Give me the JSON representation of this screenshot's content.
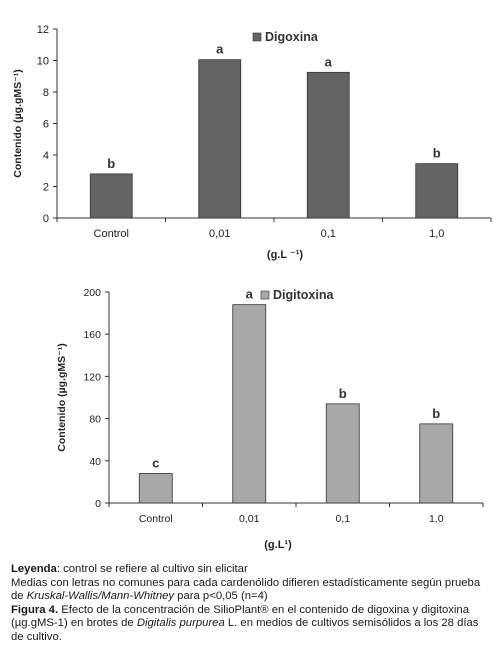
{
  "chart_data": [
    {
      "type": "bar",
      "categories": [
        "Control",
        "0,01",
        "0,1",
        "1,0"
      ],
      "series": [
        {
          "name": "Digoxina",
          "values": [
            2.8,
            10.05,
            9.25,
            3.45
          ]
        }
      ],
      "letters": [
        "b",
        "a",
        "a",
        "b"
      ],
      "ylabel": "Contenido (µg.gMS⁻¹)",
      "xlabel": "(g.L ⁻¹)",
      "ylim": [
        0,
        12
      ],
      "yticks": [
        0,
        2,
        4,
        6,
        8,
        10,
        12
      ],
      "bar_color": "#646464",
      "grid": false,
      "legend": "top-right"
    },
    {
      "type": "bar",
      "categories": [
        "Control",
        "0,01",
        "0,1",
        "1,0"
      ],
      "series": [
        {
          "name": "Digitoxina",
          "values": [
            28,
            188,
            94,
            75
          ]
        }
      ],
      "letters": [
        "c",
        "a",
        "b",
        "b"
      ],
      "ylabel": "Contenido (µg.gMS⁻¹)",
      "xlabel": "(g.L¹)",
      "ylim": [
        0,
        200
      ],
      "yticks": [
        0,
        40,
        80,
        120,
        160,
        200
      ],
      "bar_color": "#a8a8a8",
      "grid": false,
      "legend": "top-right"
    }
  ],
  "caption": {
    "leyenda_label": "Leyenda",
    "leyenda_text": ": control se refiere al cultivo sin elicitar",
    "line2_a": "Medias con letras no comunes para cada cardenólido difieren estadísticamente según prueba de ",
    "line2_italic": "Kruskal-Wallis/Mann-Whitney",
    "line2_b": " para p<0,05 (n=4)",
    "figure_label": "Figura 4.",
    "figure_text_a": " Efecto de la concentración de SilioPlant® en el contenido de digoxina y digitoxina (µg.gMS-1) en brotes de ",
    "figure_italic": "Digitalis purpurea",
    "figure_text_b": " L. en medios de cultivos semisólidos a los 28 días de cultivo."
  }
}
